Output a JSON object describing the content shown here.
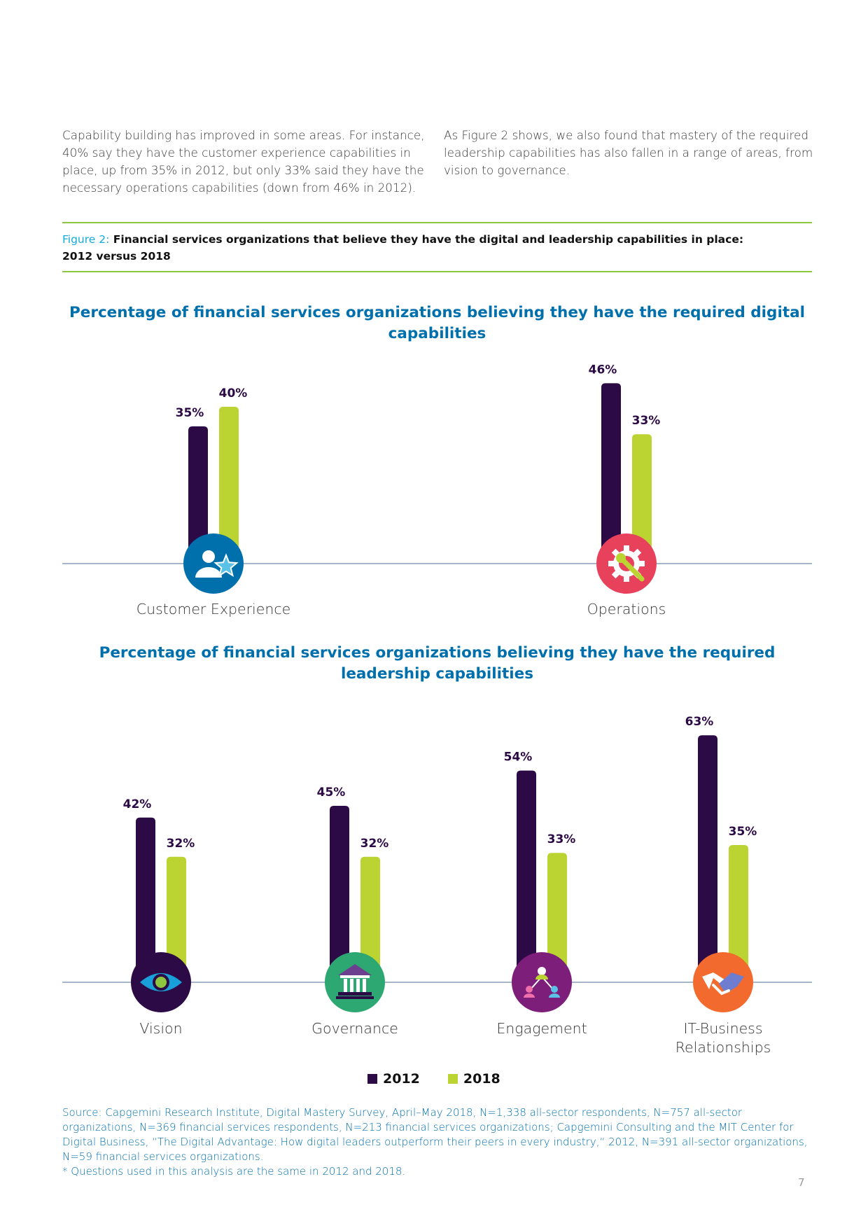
{
  "intro": {
    "left": "Capability building has improved in some areas. For instance, 40% say they have the customer experience capabilities in place, up from 35% in 2012, but only 33% said they have the necessary operations capabilities (down from 46% in 2012).",
    "right": "As Figure 2 shows, we also found that mastery of the required leadership capabilities has also fallen in a range of areas, from vision to governance."
  },
  "figure": {
    "label": "Figure 2:",
    "caption": "Financial services organizations that believe they have the digital and leadership capabilities in place: 2012 versus 2018"
  },
  "colors": {
    "series_2012": "#2c0a45",
    "series_2018": "#bcd431",
    "title": "#0070ad"
  },
  "chart_data": [
    {
      "type": "bar",
      "title": "Percentage of financial services organizations believing they have the required digital capabilities",
      "categories": [
        "Customer Experience",
        "Operations"
      ],
      "icons": [
        "customer-experience-icon",
        "operations-gear-wrench-icon"
      ],
      "icon_colors": [
        "#0070ad",
        "#e8415c"
      ],
      "series": [
        {
          "name": "2012",
          "values": [
            35,
            46
          ]
        },
        {
          "name": "2018",
          "values": [
            40,
            33
          ]
        }
      ],
      "value_labels": [
        [
          "35%",
          "46%"
        ],
        [
          "40%",
          "33%"
        ]
      ],
      "ylim": [
        0,
        70
      ],
      "legend": "bottom"
    },
    {
      "type": "bar",
      "title": "Percentage of financial services organizations believing they have the required leadership capabilities",
      "categories": [
        "Vision",
        "Governance",
        "Engagement",
        "IT-Business Relationships"
      ],
      "icons": [
        "vision-eye-icon",
        "governance-building-icon",
        "engagement-network-icon",
        "handshake-icon"
      ],
      "icon_colors": [
        "#2c0a45",
        "#2ea872",
        "#7d1f7a",
        "#f26a2e"
      ],
      "series": [
        {
          "name": "2012",
          "values": [
            42,
            45,
            54,
            63
          ]
        },
        {
          "name": "2018",
          "values": [
            32,
            32,
            33,
            35
          ]
        }
      ],
      "value_labels": [
        [
          "42%",
          "45%",
          "54%",
          "63%"
        ],
        [
          "32%",
          "32%",
          "33%",
          "35%"
        ]
      ],
      "ylim": [
        0,
        70
      ],
      "legend": "bottom"
    }
  ],
  "legend": {
    "items": [
      {
        "label": "2012",
        "color": "#2c0a45"
      },
      {
        "label": "2018",
        "color": "#bcd431"
      }
    ]
  },
  "source": {
    "text": "Source: Capgemini Research Institute, Digital Mastery Survey, April–May 2018, N=1,338 all-sector respondents, N=757 all-sector organizations, N=369 financial services respondents, N=213 financial services organizations; Capgemini Consulting and the MIT Center for Digital Business, “The Digital Advantage: How digital leaders outperform their peers in every industry,“ 2012, N=391 all-sector organizations, N=59 financial services organizations.",
    "note": "* Questions used in this analysis are the same in 2012 and 2018."
  },
  "page_number": "7"
}
